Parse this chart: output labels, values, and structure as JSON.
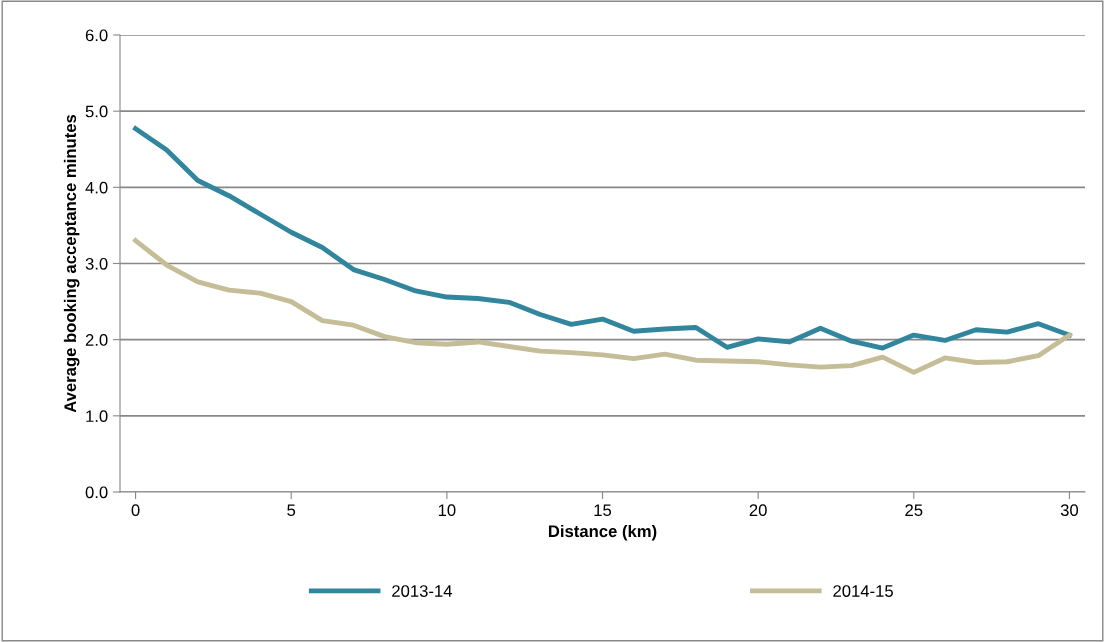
{
  "chart_data": {
    "type": "line",
    "xlabel": "Distance (km)",
    "ylabel": "Average booking acceptance minutes",
    "x": [
      0,
      1,
      2,
      3,
      4,
      5,
      6,
      7,
      8,
      9,
      10,
      11,
      12,
      13,
      14,
      15,
      16,
      17,
      18,
      19,
      20,
      21,
      22,
      23,
      24,
      25,
      26,
      27,
      28,
      29,
      30
    ],
    "series": [
      {
        "name": "2013-14",
        "color": "#31859c",
        "values": [
          4.77,
          4.49,
          4.09,
          3.89,
          3.65,
          3.41,
          3.21,
          2.92,
          2.79,
          2.64,
          2.56,
          2.54,
          2.49,
          2.33,
          2.2,
          2.27,
          2.11,
          2.14,
          2.16,
          1.9,
          2.01,
          1.97,
          2.15,
          1.98,
          1.89,
          2.06,
          1.99,
          2.13,
          2.1,
          2.21,
          2.06
        ]
      },
      {
        "name": "2014-15",
        "color": "#c4bd97",
        "values": [
          3.3,
          2.98,
          2.76,
          2.65,
          2.61,
          2.5,
          2.25,
          2.19,
          2.04,
          1.96,
          1.94,
          1.97,
          1.91,
          1.85,
          1.83,
          1.8,
          1.75,
          1.81,
          1.73,
          1.72,
          1.71,
          1.67,
          1.64,
          1.66,
          1.77,
          1.57,
          1.76,
          1.7,
          1.71,
          1.79,
          2.06
        ]
      }
    ],
    "xlim": [
      -0.5,
      30.5
    ],
    "xticks": [
      0,
      5,
      10,
      15,
      20,
      25,
      30
    ],
    "ylim": [
      0,
      6
    ],
    "yticks": [
      {
        "value": 0,
        "label": "0.0"
      },
      {
        "value": 1,
        "label": "1.0"
      },
      {
        "value": 2,
        "label": "2.0"
      },
      {
        "value": 3,
        "label": "3.0"
      },
      {
        "value": 4,
        "label": "4.0"
      },
      {
        "value": 5,
        "label": "5.0"
      },
      {
        "value": 6,
        "label": "6.0"
      }
    ],
    "grid": "y",
    "legend": "bottom",
    "marker": "none",
    "line_style": "solid"
  }
}
